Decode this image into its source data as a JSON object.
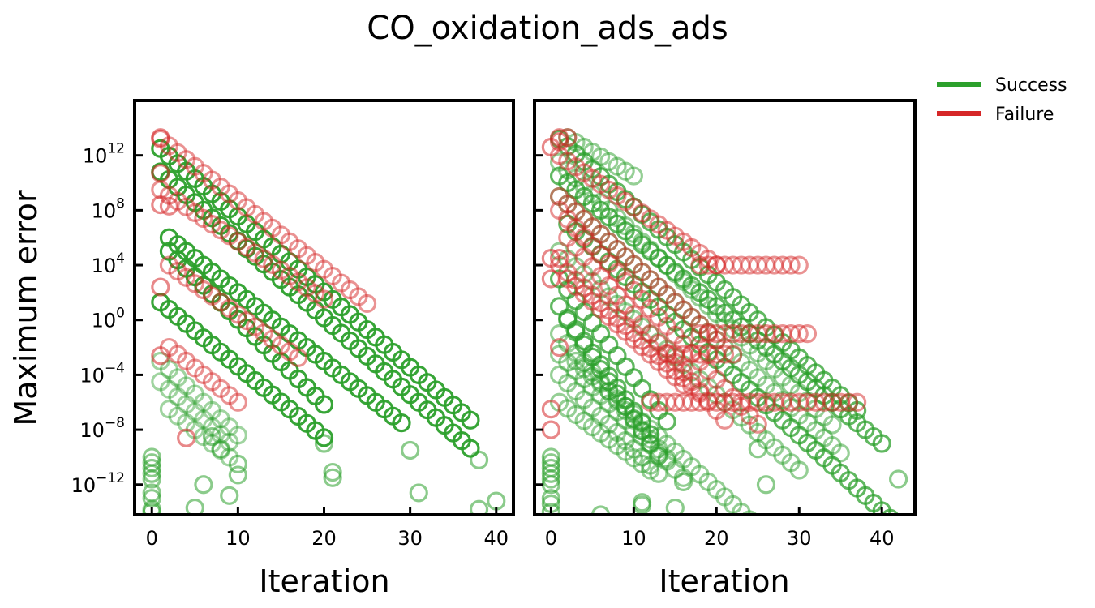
{
  "title": "CO_oxidation_ads_ads",
  "ylabel": "Maximum error",
  "legend": [
    {
      "label": "Success",
      "color": "#2ca02c"
    },
    {
      "label": "Failure",
      "color": "#d62728"
    }
  ],
  "chart_data": [
    {
      "type": "scatter",
      "panel": "left",
      "xlabel": "Iteration",
      "ylabel": "Maximum error",
      "xlim": [
        -2,
        42
      ],
      "ylim_log10": [
        -14.2,
        16
      ],
      "y_scale": "log",
      "xticks": [
        0,
        10,
        20,
        30,
        40
      ],
      "yticks_log10": [
        -12,
        -8,
        -4,
        0,
        4,
        8,
        12
      ],
      "marker": "open circle",
      "series": [
        {
          "name": "Success",
          "color": "#2ca02c",
          "trajectories": [
            {
              "start": 1,
              "y0": 12.5,
              "slope": -0.55,
              "n": 37,
              "alpha": 0.95
            },
            {
              "start": 1,
              "y0": 10.8,
              "slope": -0.56,
              "n": 37,
              "alpha": 0.95
            },
            {
              "start": 2,
              "y0": 5.0,
              "slope": -0.62,
              "n": 19,
              "alpha": 0.95
            },
            {
              "start": 1,
              "y0": 1.3,
              "slope": -0.52,
              "n": 20,
              "alpha": 0.95
            },
            {
              "start": 2,
              "y0": 6.0,
              "slope": -0.5,
              "n": 28,
              "alpha": 0.95
            },
            {
              "start": 1,
              "y0": -3.0,
              "slope": -0.6,
              "n": 10,
              "alpha": 0.45
            },
            {
              "start": 1,
              "y0": -4.5,
              "slope": -0.55,
              "n": 9,
              "alpha": 0.45
            },
            {
              "start": 2,
              "y0": -6.5,
              "slope": -0.5,
              "n": 8,
              "alpha": 0.45
            }
          ],
          "points": [
            {
              "x": 0,
              "y_log10": -10.0
            },
            {
              "x": 0,
              "y_log10": -10.4
            },
            {
              "x": 0,
              "y_log10": -10.8
            },
            {
              "x": 0,
              "y_log10": -11.2
            },
            {
              "x": 0,
              "y_log10": -11.6
            },
            {
              "x": 0,
              "y_log10": -12.6
            },
            {
              "x": 0,
              "y_log10": -13.0
            },
            {
              "x": 0,
              "y_log10": -14.0
            },
            {
              "x": 0,
              "y_log10": -13.8
            },
            {
              "x": 5,
              "y_log10": -13.7
            },
            {
              "x": 6,
              "y_log10": -12.0
            },
            {
              "x": 8,
              "y_log10": -9.4
            },
            {
              "x": 9,
              "y_log10": -12.8
            },
            {
              "x": 10,
              "y_log10": -11.3
            },
            {
              "x": 10,
              "y_log10": -10.5
            },
            {
              "x": 7,
              "y_log10": -8.5
            },
            {
              "x": 21,
              "y_log10": -11.1
            },
            {
              "x": 21,
              "y_log10": -11.5
            },
            {
              "x": 20,
              "y_log10": -9.0
            },
            {
              "x": 31,
              "y_log10": -12.6
            },
            {
              "x": 38,
              "y_log10": -13.8
            },
            {
              "x": 40,
              "y_log10": -13.2
            },
            {
              "x": 30,
              "y_log10": -9.5
            },
            {
              "x": 38,
              "y_log10": -10.2
            }
          ]
        },
        {
          "name": "Failure",
          "color": "#d62728",
          "trajectories": [
            {
              "start": 1,
              "y0": 13.2,
              "slope": -0.5,
              "n": 25,
              "alpha": 0.5
            },
            {
              "start": 1,
              "y0": 9.5,
              "slope": -0.42,
              "n": 20,
              "alpha": 0.5
            },
            {
              "start": 2,
              "y0": 4.0,
              "slope": -0.45,
              "n": 16,
              "alpha": 0.5
            },
            {
              "start": 2,
              "y0": -2.0,
              "slope": -0.5,
              "n": 9,
              "alpha": 0.5
            }
          ],
          "points": [
            {
              "x": 1,
              "y_log10": 13.3
            },
            {
              "x": 1,
              "y_log10": 10.7
            },
            {
              "x": 1,
              "y_log10": 8.4
            },
            {
              "x": 2,
              "y_log10": 8.3
            },
            {
              "x": 1,
              "y_log10": 2.4
            },
            {
              "x": 1,
              "y_log10": -2.6
            },
            {
              "x": 4,
              "y_log10": -8.6
            }
          ]
        }
      ]
    },
    {
      "type": "scatter",
      "panel": "right",
      "xlabel": "Iteration",
      "ylabel": "",
      "xlim": [
        -2,
        44
      ],
      "ylim_log10": [
        -14.2,
        16
      ],
      "y_scale": "log",
      "xticks": [
        0,
        10,
        20,
        30,
        40
      ],
      "yticks_log10": [
        -12,
        -8,
        -4,
        0,
        4,
        8,
        12
      ],
      "shared_y": true,
      "marker": "open circle",
      "series": [
        {
          "name": "Success",
          "color": "#2ca02c",
          "trajectories": [
            {
              "start": 1,
              "y0": 13.2,
              "slope": -0.55,
              "n": 37,
              "alpha": 0.75
            },
            {
              "start": 1,
              "y0": 10.5,
              "slope": -0.5,
              "n": 40,
              "alpha": 0.75
            },
            {
              "start": 1,
              "y0": 11.5,
              "slope": -0.58,
              "n": 34,
              "alpha": 0.5
            },
            {
              "start": 1,
              "y0": 9.0,
              "slope": -0.55,
              "n": 35,
              "alpha": 0.5
            },
            {
              "start": 1,
              "y0": 5.0,
              "slope": -0.55,
              "n": 30,
              "alpha": 0.5
            },
            {
              "start": 1,
              "y0": 3.0,
              "slope": -0.8,
              "n": 14,
              "alpha": 0.75
            },
            {
              "start": 1,
              "y0": 1.0,
              "slope": -0.85,
              "n": 12,
              "alpha": 0.75
            },
            {
              "start": 1,
              "y0": -1.0,
              "slope": -0.7,
              "n": 14,
              "alpha": 0.5
            },
            {
              "start": 1,
              "y0": -2.5,
              "slope": -0.6,
              "n": 16,
              "alpha": 0.5
            },
            {
              "start": 1,
              "y0": -4.0,
              "slope": -0.6,
              "n": 13,
              "alpha": 0.5
            },
            {
              "start": 1,
              "y0": -6.0,
              "slope": -0.45,
              "n": 12,
              "alpha": 0.5
            },
            {
              "start": 2,
              "y0": 0.0,
              "slope": -0.9,
              "n": 12,
              "alpha": 0.75
            },
            {
              "start": 2,
              "y0": 13.3,
              "slope": -0.35,
              "n": 9,
              "alpha": 0.5
            },
            {
              "start": 2,
              "y0": 7.0,
              "slope": -0.55,
              "n": 40,
              "alpha": 0.75
            },
            {
              "start": 3,
              "y0": -3.0,
              "slope": -0.55,
              "n": 28,
              "alpha": 0.5
            }
          ],
          "points": [
            {
              "x": 0,
              "y_log10": -10.0
            },
            {
              "x": 0,
              "y_log10": -10.4
            },
            {
              "x": 0,
              "y_log10": -10.8
            },
            {
              "x": 0,
              "y_log10": -11.2
            },
            {
              "x": 0,
              "y_log10": -11.6
            },
            {
              "x": 0,
              "y_log10": -12.0
            },
            {
              "x": 0,
              "y_log10": -13.0
            },
            {
              "x": 0,
              "y_log10": -13.4
            },
            {
              "x": 0,
              "y_log10": -14.0
            },
            {
              "x": 6,
              "y_log10": -14.2
            },
            {
              "x": 11,
              "y_log10": -13.5
            },
            {
              "x": 11,
              "y_log10": -13.3
            },
            {
              "x": 15,
              "y_log10": -13.7
            },
            {
              "x": 16,
              "y_log10": -11.8
            },
            {
              "x": 26,
              "y_log10": -12.0
            },
            {
              "x": 25,
              "y_log10": -9.4
            },
            {
              "x": 42,
              "y_log10": -11.6
            }
          ]
        },
        {
          "name": "Failure",
          "color": "#d62728",
          "trajectories": [
            {
              "start": 1,
              "y0": 12.0,
              "slope": -0.42,
              "n": 20,
              "alpha": 0.5
            },
            {
              "start": 1,
              "y0": 9.0,
              "slope": -0.55,
              "n": 20,
              "alpha": 0.5
            },
            {
              "start": 1,
              "y0": 4.0,
              "slope": -0.55,
              "n": 18,
              "alpha": 0.5
            },
            {
              "start": 1,
              "y0": 8.0,
              "slope": -0.65,
              "n": 25,
              "alpha": 0.5
            },
            {
              "start": 2,
              "y0": 6.0,
              "slope": -0.7,
              "n": 20,
              "alpha": 0.5
            },
            {
              "start": 2,
              "y0": 3.0,
              "slope": -0.55,
              "n": 15,
              "alpha": 0.5
            }
          ],
          "plateaus": [
            {
              "x_from": 18,
              "x_to": 30,
              "y_log10": 4.0
            },
            {
              "x_from": 18,
              "x_to": 31,
              "y_log10": -1.0
            },
            {
              "x_from": 12,
              "x_to": 37,
              "y_log10": -6.0
            },
            {
              "x_from": 14,
              "x_to": 22,
              "y_log10": -2.5
            }
          ],
          "points": [
            {
              "x": 1,
              "y_log10": 13.3
            },
            {
              "x": 1,
              "y_log10": 13.0
            },
            {
              "x": 0,
              "y_log10": 12.6
            },
            {
              "x": 2,
              "y_log10": 13.3
            },
            {
              "x": 0,
              "y_log10": 4.5
            },
            {
              "x": 1,
              "y_log10": 4.5
            },
            {
              "x": 0,
              "y_log10": 3.0
            },
            {
              "x": 0,
              "y_log10": -6.5
            },
            {
              "x": 0,
              "y_log10": -8.0
            },
            {
              "x": 1,
              "y_log10": -2.0
            }
          ]
        }
      ]
    }
  ]
}
